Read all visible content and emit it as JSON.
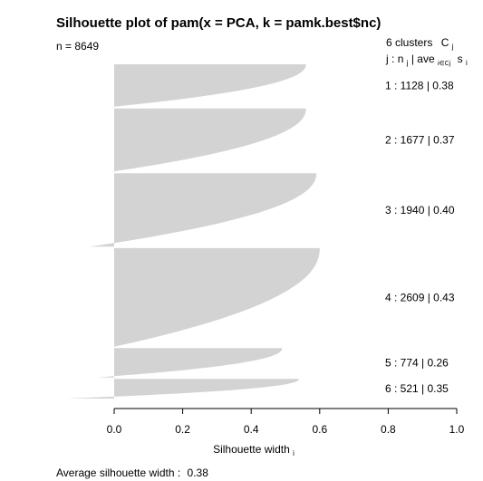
{
  "chart_data": {
    "type": "silhouette",
    "title": "Silhouette plot of pam(x = PCA, k = pamk.best$nc)",
    "n_label": "n = 8649",
    "n": 8649,
    "clusters_header": "6 clusters",
    "clusters_header_symbol": "C",
    "clusters_header_subscript": "j",
    "columns_header": {
      "j": "j",
      "nj": "n",
      "nj_sub": "j",
      "ave": "ave",
      "ave_sub": "i∈Cj",
      "si": "s",
      "si_sub": "i"
    },
    "xlabel": "Silhouette width",
    "xlabel_sub": "i",
    "xlim": [
      0,
      1
    ],
    "xticks": [
      "0.0",
      "0.2",
      "0.4",
      "0.6",
      "0.8",
      "1.0"
    ],
    "average_label": "Average silhouette width :",
    "average": "0.38",
    "fill_color": "#d3d3d3",
    "clusters": [
      {
        "j": "1",
        "size": "1128",
        "ave": "0.38",
        "max": 0.56,
        "min": -0.01
      },
      {
        "j": "2",
        "size": "1677",
        "ave": "0.37",
        "max": 0.56,
        "min": -0.01
      },
      {
        "j": "3",
        "size": "1940",
        "ave": "0.40",
        "max": 0.59,
        "min": -0.07
      },
      {
        "j": "4",
        "size": "2609",
        "ave": "0.43",
        "max": 0.6,
        "min": 0.0
      },
      {
        "j": "5",
        "size": "774",
        "ave": "0.26",
        "max": 0.49,
        "min": -0.05
      },
      {
        "j": "6",
        "size": "521",
        "ave": "0.35",
        "max": 0.54,
        "min": -0.14
      }
    ]
  }
}
